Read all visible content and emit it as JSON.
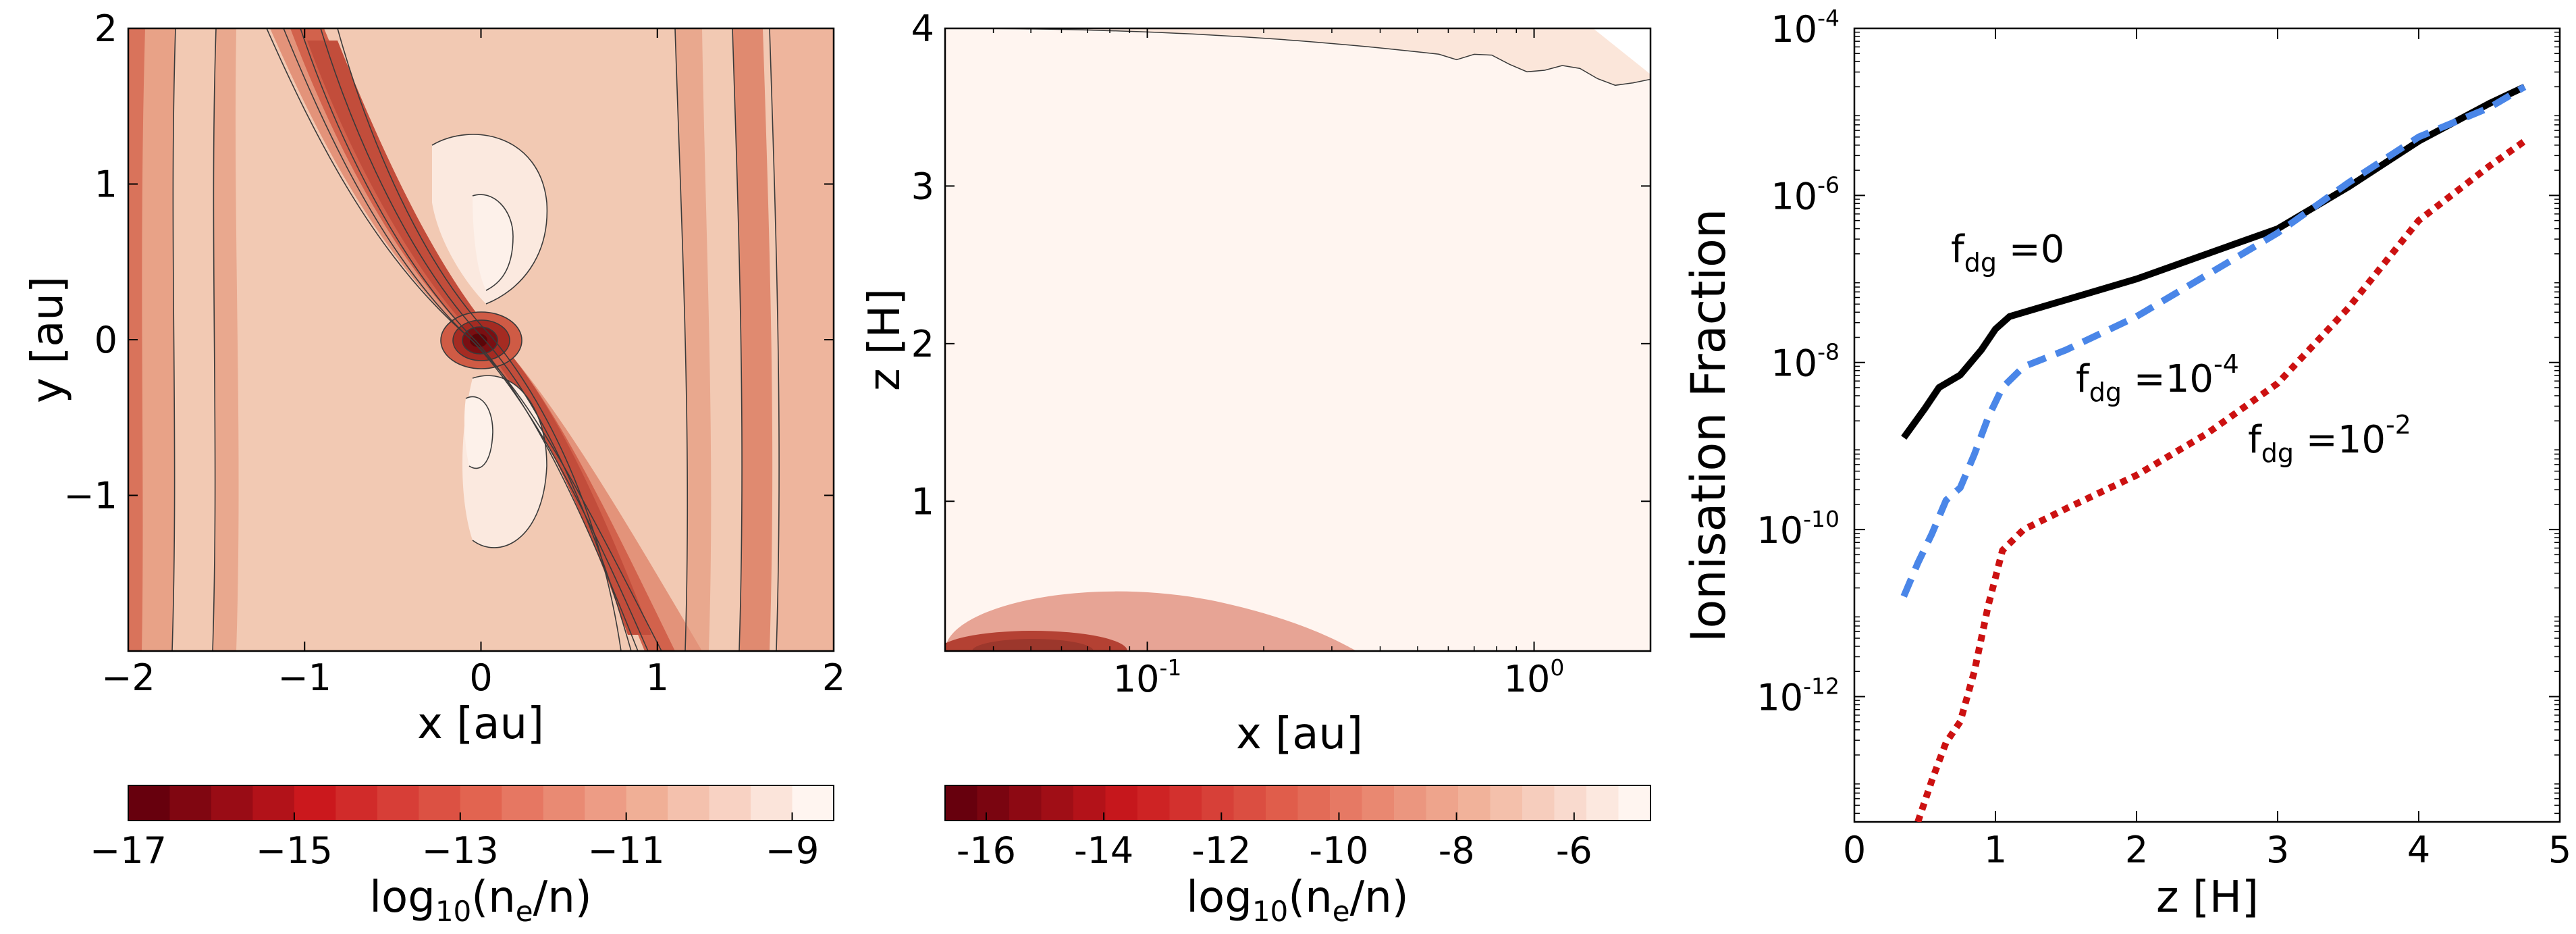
{
  "chart_data": [
    {
      "type": "heatmap",
      "panel": "left",
      "xlabel": "x [au]",
      "ylabel": "y [au]",
      "xlim": [
        -2,
        2
      ],
      "ylim": [
        -2,
        2
      ],
      "xticks": [
        -2,
        -1,
        0,
        1,
        2
      ],
      "xtick_labels": [
        "−2",
        "−1",
        "0",
        "1",
        "2"
      ],
      "yticks": [
        -1,
        0,
        1,
        2
      ],
      "ytick_labels": [
        "−1",
        "0",
        "1",
        "2"
      ],
      "colorbar": {
        "label_base": "log",
        "label_sub": "10",
        "label_paren": "(n",
        "label_sub2": "e",
        "label_end": "/n)",
        "range": [
          -17,
          -8.5
        ],
        "ticks": [
          -17,
          -15,
          -13,
          -11,
          -9
        ],
        "tick_labels": [
          "−17",
          "−15",
          "−13",
          "−11",
          "−9"
        ],
        "levels": 17
      }
    },
    {
      "type": "heatmap",
      "panel": "middle",
      "xlabel": "x [au]",
      "ylabel": "z [H]",
      "xscale": "log",
      "xlim": [
        0.03,
        2.0
      ],
      "ylim": [
        0.05,
        4
      ],
      "xticks": [
        0.1,
        1.0
      ],
      "xtick_labels": [
        {
          "base": "10",
          "exp": "-1"
        },
        {
          "base": "10",
          "exp": "0"
        }
      ],
      "yticks": [
        1,
        2,
        3,
        4
      ],
      "ytick_labels": [
        "1",
        "2",
        "3",
        "4"
      ],
      "colorbar": {
        "label_base": "log",
        "label_sub": "10",
        "label_paren": "(n",
        "label_sub2": "e",
        "label_end": "/n)",
        "range": [
          -16.7,
          -4.7
        ],
        "ticks": [
          -16,
          -14,
          -12,
          -10,
          -8,
          -6
        ],
        "tick_labels": [
          "-16",
          "-14",
          "-12",
          "-10",
          "-8",
          "-6"
        ],
        "levels": 22
      }
    },
    {
      "type": "line",
      "panel": "right",
      "xlabel": "z [H]",
      "ylabel": "Ionisation Fraction",
      "yscale": "log",
      "xlim": [
        0,
        5
      ],
      "ylim": [
        -13.5,
        -4
      ],
      "xticks": [
        0,
        1,
        2,
        3,
        4,
        5
      ],
      "xtick_labels": [
        "0",
        "1",
        "2",
        "3",
        "4",
        "5"
      ],
      "yticks": [
        -12,
        -10,
        -8,
        -6,
        -4
      ],
      "ytick_labels": [
        {
          "base": "10",
          "exp": "-12"
        },
        {
          "base": "10",
          "exp": "-10"
        },
        {
          "base": "10",
          "exp": "-8"
        },
        {
          "base": "10",
          "exp": "-6"
        },
        {
          "base": "10",
          "exp": "-4"
        }
      ],
      "series": [
        {
          "name": "f_dg=0",
          "label_main": "f",
          "label_sub": "dg",
          "label_rest": " =0",
          "label_exp": "",
          "color": "#000000",
          "style": "solid",
          "x": [
            0.35,
            0.5,
            0.6,
            0.75,
            0.9,
            1.0,
            1.1,
            1.3,
            1.6,
            2.0,
            2.5,
            3.0,
            3.5,
            4.0,
            4.5,
            4.75
          ],
          "log_y": [
            -8.9,
            -8.55,
            -8.3,
            -8.15,
            -7.85,
            -7.6,
            -7.45,
            -7.35,
            -7.2,
            -7.0,
            -6.7,
            -6.4,
            -5.9,
            -5.35,
            -4.9,
            -4.7
          ]
        },
        {
          "name": "f_dg=10^-4",
          "label_main": "f",
          "label_sub": "dg",
          "label_rest": " =10",
          "label_exp": "-4",
          "color": "#4a86e8",
          "style": "dashed",
          "x": [
            0.35,
            0.45,
            0.55,
            0.65,
            0.75,
            0.85,
            0.95,
            1.05,
            1.2,
            1.5,
            2.0,
            2.5,
            3.0,
            3.5,
            4.0,
            4.5,
            4.75
          ],
          "log_y": [
            -10.8,
            -10.4,
            -10.05,
            -9.65,
            -9.5,
            -9.1,
            -8.65,
            -8.3,
            -8.05,
            -7.85,
            -7.45,
            -6.95,
            -6.45,
            -5.85,
            -5.3,
            -4.95,
            -4.7
          ]
        },
        {
          "name": "f_dg=10^-2",
          "label_main": "f",
          "label_sub": "dg",
          "label_rest": " =10",
          "label_exp": "-2",
          "color": "#cc1111",
          "style": "dotted",
          "x": [
            0.45,
            0.55,
            0.65,
            0.75,
            0.85,
            0.95,
            1.05,
            1.2,
            1.5,
            2.0,
            2.5,
            3.0,
            3.5,
            4.0,
            4.5,
            4.75
          ],
          "log_y": [
            -13.5,
            -13.0,
            -12.55,
            -12.3,
            -11.7,
            -10.9,
            -10.25,
            -10.0,
            -9.75,
            -9.35,
            -8.85,
            -8.25,
            -7.35,
            -6.3,
            -5.65,
            -5.35
          ]
        }
      ]
    }
  ]
}
